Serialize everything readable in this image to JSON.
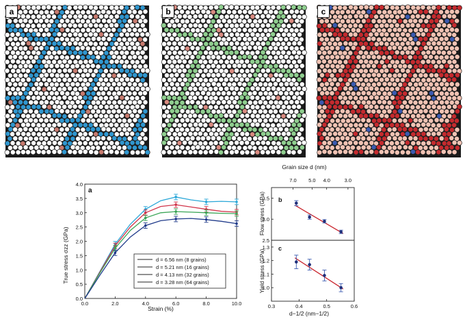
{
  "panels": [
    {
      "label": "a",
      "base_color": "#ffffff",
      "boundary_color": "#2f97d0",
      "accent_color": "#c77a6e"
    },
    {
      "label": "b",
      "base_color": "#ffffff",
      "boundary_color": "#8fcf8f",
      "accent_color": "#d98a80"
    },
    {
      "label": "c",
      "base_color": "#f1c3b4",
      "boundary_color": "#c52a2e",
      "accent_color": "#3a5ab0"
    }
  ],
  "legend_items": [
    "d = 6.56 nm (8 grains)",
    "d = 5.21 nm (16 grains)",
    "d = 4.13 nm (32 grains)",
    "d = 3.28 nm (64 grains)"
  ],
  "chart_data": [
    {
      "id": "a",
      "type": "line",
      "panel_label": "a",
      "xlabel": "Strain (%)",
      "ylabel": "True stress σzz (GPa)",
      "xlim": [
        0,
        10
      ],
      "ylim": [
        0,
        4.0
      ],
      "xticks": [
        "0.0",
        "2.0",
        "4.0",
        "6.0",
        "8.0",
        "10.0"
      ],
      "yticks": [
        "0.0",
        "0.5",
        "1.0",
        "1.5",
        "2.0",
        "2.5",
        "3.0",
        "3.5",
        "4.0"
      ],
      "series": [
        {
          "name": "d = 6.56 nm (8 grains)",
          "color": "#2aa7d8",
          "x": [
            0,
            1,
            2,
            3,
            4,
            5,
            6,
            7,
            8,
            9,
            10
          ],
          "y": [
            0,
            0.95,
            1.9,
            2.6,
            3.12,
            3.42,
            3.55,
            3.45,
            3.38,
            3.4,
            3.38
          ],
          "err_x": [
            2,
            4,
            6,
            8,
            10
          ],
          "err_y": [
            1.9,
            3.12,
            3.55,
            3.38,
            3.38
          ]
        },
        {
          "name": "d = 5.21 nm (16 grains)",
          "color": "#d0344a",
          "x": [
            0,
            1,
            2,
            3,
            4,
            5,
            6,
            7,
            8,
            9,
            10
          ],
          "y": [
            0,
            0.93,
            1.84,
            2.5,
            3.0,
            3.22,
            3.28,
            3.2,
            3.12,
            3.05,
            3.02
          ],
          "err_x": [
            2,
            4,
            6,
            8,
            10
          ],
          "err_y": [
            1.84,
            3.0,
            3.28,
            3.12,
            3.02
          ]
        },
        {
          "name": "d = 4.13 nm (32 grains)",
          "color": "#3aa556",
          "x": [
            0,
            1,
            2,
            3,
            4,
            5,
            6,
            7,
            8,
            9,
            10
          ],
          "y": [
            0,
            0.9,
            1.76,
            2.38,
            2.82,
            3.0,
            3.04,
            3.02,
            3.0,
            2.98,
            2.97
          ],
          "err_x": [
            2,
            4,
            6,
            8,
            10
          ],
          "err_y": [
            1.76,
            2.82,
            3.04,
            3.0,
            2.97
          ]
        },
        {
          "name": "d = 3.28 nm (64 grains)",
          "color": "#1f3a8a",
          "x": [
            0,
            1,
            2,
            3,
            4,
            5,
            6,
            7,
            8,
            9,
            10
          ],
          "y": [
            0,
            0.82,
            1.6,
            2.15,
            2.55,
            2.72,
            2.78,
            2.8,
            2.76,
            2.7,
            2.62
          ],
          "err_x": [
            2,
            4,
            6,
            8,
            10
          ],
          "err_y": [
            1.6,
            2.55,
            2.78,
            2.76,
            2.62
          ]
        }
      ]
    },
    {
      "id": "b",
      "type": "scatter",
      "panel_label": "b",
      "xlabel": "d−1/2 (nm−1/2)",
      "x2label": "Grain size d (nm)",
      "x2ticks": [
        "7.0",
        "5.0",
        "4.0",
        "3.0"
      ],
      "ylabel": "Flow stress (GPa)",
      "xlim": [
        0.3,
        0.6
      ],
      "ylim": [
        2.5,
        3.75
      ],
      "yticks": [
        "2.5",
        "3.0",
        "3.5"
      ],
      "x": [
        0.39,
        0.438,
        0.492,
        0.552
      ],
      "y": [
        3.38,
        3.05,
        2.95,
        2.7
      ],
      "yerr": [
        0.06,
        0.05,
        0.04,
        0.04
      ],
      "fit": {
        "x": [
          0.385,
          0.56
        ],
        "y": [
          3.33,
          2.66
        ]
      }
    },
    {
      "id": "c",
      "type": "scatter",
      "panel_label": "c",
      "xlabel": "d−1/2 (nm−1/2)",
      "ylabel": "Yield stress (GPa)",
      "xlim": [
        0.3,
        0.6
      ],
      "ylim": [
        0.9,
        1.35
      ],
      "xticks": [
        "0.3",
        "0.4",
        "0.5",
        "0.6"
      ],
      "yticks": [
        "1.0",
        "1.1",
        "1.2",
        "1.3"
      ],
      "x": [
        0.39,
        0.438,
        0.492,
        0.552
      ],
      "y": [
        1.19,
        1.17,
        1.09,
        1.0
      ],
      "yerr": [
        0.05,
        0.04,
        0.04,
        0.03
      ],
      "fit": {
        "x": [
          0.385,
          0.56
        ],
        "y": [
          1.22,
          0.99
        ]
      }
    }
  ]
}
